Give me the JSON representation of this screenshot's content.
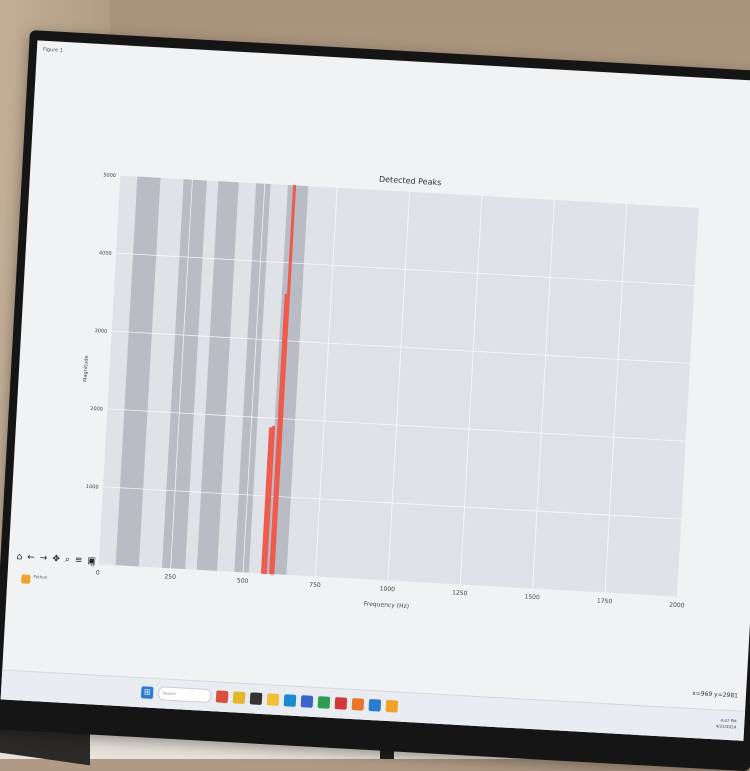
{
  "window": {
    "title": "Figure 1"
  },
  "toolbar_icons": [
    "home-icon",
    "back-icon",
    "forward-icon",
    "pan-icon",
    "zoom-icon",
    "configure-icon",
    "save-icon"
  ],
  "coords_readout": "x=969  y=2981",
  "taskbar": {
    "app_label": "Python",
    "search_placeholder": "Search",
    "clock_time": "4:47 PM",
    "clock_date": "4/23/2024"
  },
  "colors": {
    "plot_bg": "#dfe2e7",
    "band": "#b9bcc4",
    "peak": "#ee5a4e",
    "grid": "#ffffff"
  },
  "chart_data": {
    "type": "bar",
    "title": "Detected Peaks",
    "xlabel": "Frequency (Hz)",
    "ylabel": "Magnitude",
    "xlim": [
      0,
      2000
    ],
    "ylim": [
      0,
      5000
    ],
    "xticks": [
      "0",
      "250",
      "500",
      "750",
      "1000",
      "1250",
      "1500",
      "1750",
      "2000"
    ],
    "yticks": [
      "0",
      "1000",
      "2000",
      "3000",
      "4000",
      "5000"
    ],
    "grid": true,
    "bands": [
      [
        60,
        140
      ],
      [
        220,
        300
      ],
      [
        340,
        410
      ],
      [
        470,
        520
      ],
      [
        580,
        650
      ]
    ],
    "peaks": [
      {
        "x": 567,
        "y": 1880
      },
      {
        "x": 577,
        "y": 1900
      },
      {
        "x": 595,
        "y": 3600
      },
      {
        "x": 603,
        "y": 5000
      }
    ]
  }
}
